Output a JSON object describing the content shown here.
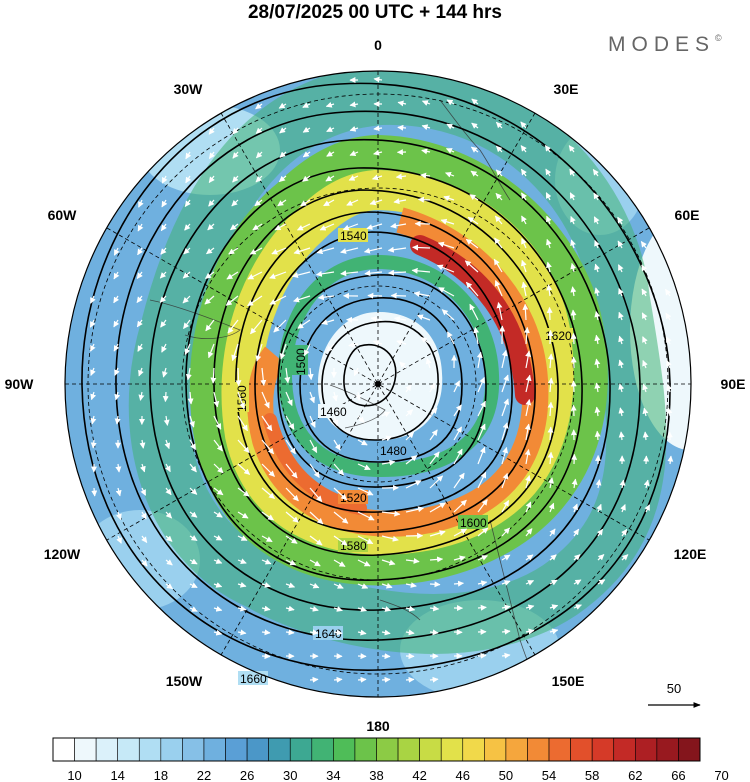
{
  "title": "28/07/2025  00 UTC  + 144 hrs",
  "brand": "MODES",
  "brand_mark": "©",
  "longitude_labels": [
    "0",
    "30E",
    "60E",
    "90E",
    "120E",
    "150E",
    "180",
    "150W",
    "120W",
    "90W",
    "60W",
    "30W"
  ],
  "wind_reference": {
    "value": "50",
    "icon": "arrow-right-icon"
  },
  "contours": [
    {
      "value": 1460,
      "label": "1460"
    },
    {
      "value": 1480,
      "label": "1480"
    },
    {
      "value": 1500,
      "label": "1500"
    },
    {
      "value": 1520,
      "label": "1520"
    },
    {
      "value": 1540,
      "label": "1540"
    },
    {
      "value": 1560,
      "label": "1560"
    },
    {
      "value": 1580,
      "label": "1580"
    },
    {
      "value": 1600,
      "label": "1600"
    },
    {
      "value": 1620,
      "label": "1620"
    },
    {
      "value": 1640,
      "label": "1640"
    },
    {
      "value": 1660,
      "label": "1660"
    }
  ],
  "colorbar": {
    "tick_labels": [
      "10",
      "14",
      "18",
      "22",
      "26",
      "30",
      "34",
      "38",
      "42",
      "46",
      "50",
      "54",
      "58",
      "62",
      "66",
      "70"
    ],
    "colors": [
      "#ffffff",
      "#eef8fc",
      "#dbf1fa",
      "#c6e9f7",
      "#b0def3",
      "#9ad0ee",
      "#86c0e7",
      "#6fb0df",
      "#5a9fd6",
      "#4b97c8",
      "#3f9bb0",
      "#3da892",
      "#41b374",
      "#4fbd58",
      "#6cc34a",
      "#8ccb45",
      "#a9d443",
      "#c8dc45",
      "#e2e14a",
      "#f1d94a",
      "#f6c244",
      "#f5a63d",
      "#f28a36",
      "#ec6b30",
      "#e2502b",
      "#d53a28",
      "#c32a26",
      "#ad1f23",
      "#98191f",
      "#84151c"
    ]
  }
}
